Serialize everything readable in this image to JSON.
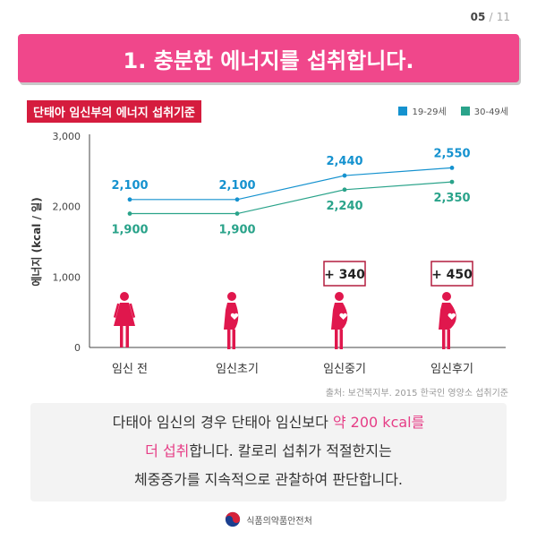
{
  "page": {
    "current": "05",
    "separator": "/",
    "total": "11"
  },
  "banner": {
    "title": "1. 충분한 에너지를 섭취합니다."
  },
  "chart_data": {
    "type": "line",
    "title": "단태아 임신부의 에너지 섭취기준",
    "ylabel": "에너지 (kcal / 일)",
    "xlabel": "",
    "categories": [
      "임신 전",
      "임신초기",
      "임신중기",
      "임신후기"
    ],
    "ylim": [
      0,
      3000
    ],
    "yticks": [
      0,
      1000,
      2000,
      3000
    ],
    "ytick_labels": [
      "0",
      "1,000",
      "2,000",
      "3,000"
    ],
    "grid": false,
    "legend_position": "top-right",
    "series": [
      {
        "name": "19-29세",
        "color": "#1592cf",
        "values": [
          2100,
          2100,
          2440,
          2550
        ],
        "labels": [
          "2,100",
          "2,100",
          "2,440",
          "2,550"
        ]
      },
      {
        "name": "30-49세",
        "color": "#2aa38a",
        "values": [
          1900,
          1900,
          2240,
          2350
        ],
        "labels": [
          "1,900",
          "1,900",
          "2,240",
          "2,350"
        ]
      }
    ],
    "additions": [
      "",
      "",
      "+ 340",
      "+ 450"
    ]
  },
  "source": "출처: 보건복지부. 2015 한국인 영양소 섭취기준",
  "note": {
    "line1_pre": "다태아 임신의 경우 단태아 임신보다 ",
    "line1_hl": "약 200 kcal를",
    "line2_hl": "더 섭취",
    "line2_post": "합니다. 칼로리 섭취가 적절한지는",
    "line3": "체중증가를 지속적으로 관찰하여 판단합니다."
  },
  "footer": {
    "org": "식품의약품안전처"
  },
  "colors": {
    "accent": "#f0478b",
    "title_bg": "#d51c3e",
    "figure": "#e0174d",
    "series1": "#1592cf",
    "series2": "#2aa38a",
    "box_border": "#b31d3f"
  }
}
